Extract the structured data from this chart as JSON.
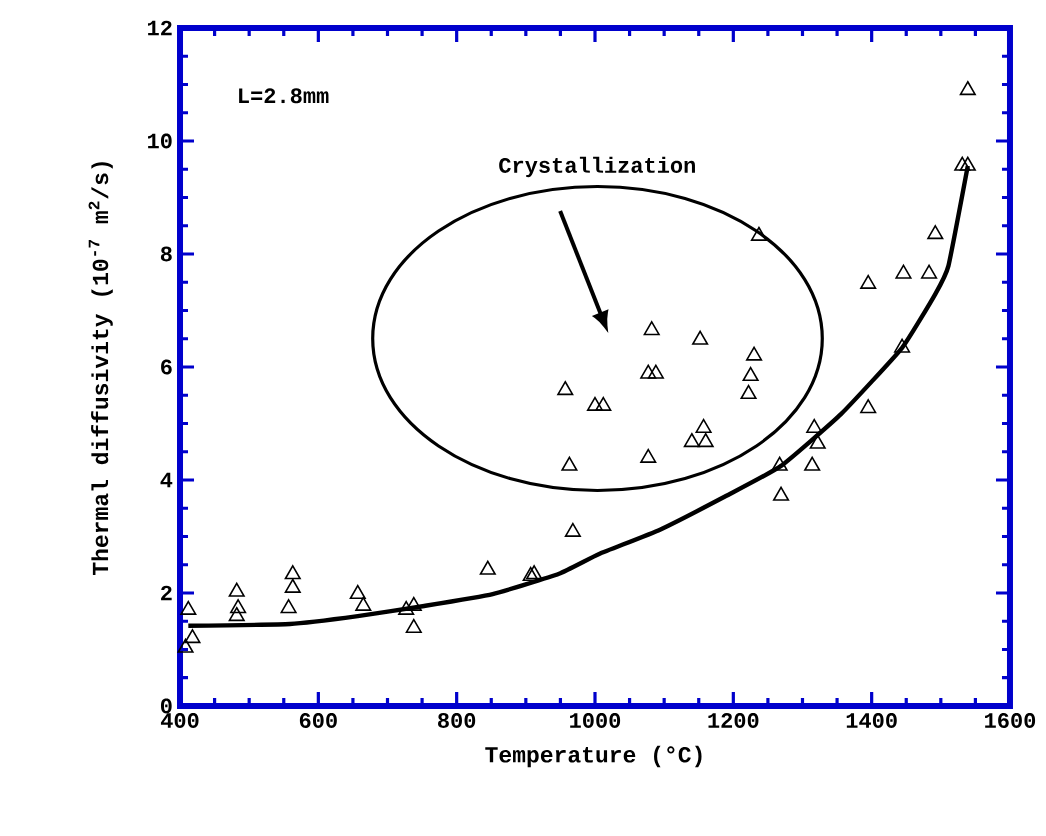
{
  "chart_data": {
    "type": "scatter",
    "xlabel": "Temperature (°C)",
    "ylabel": "Thermal diffusivity (10$^{-7}$ m$^{2}$/s)",
    "annotations": [
      "L=2.8mm",
      "Crystallization"
    ],
    "xlim": [
      400,
      1600
    ],
    "xticks": [
      400,
      600,
      800,
      1000,
      1200,
      1400,
      1600
    ],
    "ylim": [
      0,
      12
    ],
    "yticks": [
      0,
      2,
      4,
      6,
      8,
      10,
      12
    ],
    "grid": false,
    "series": [
      {
        "marker": "triangle",
        "color": "#000000",
        "x": [
          412,
          418,
          408,
          482,
          484,
          482,
          563,
          563,
          557,
          657,
          665,
          727,
          738,
          738,
          845,
          907,
          912,
          957,
          963,
          968,
          1000,
          1012,
          1082,
          1077,
          1088,
          1077,
          1152,
          1140,
          1157,
          1160,
          1230,
          1225,
          1222,
          1237,
          1267,
          1269,
          1317,
          1322,
          1314,
          1395,
          1395,
          1446,
          1444,
          1483,
          1492,
          1531,
          1539,
          1539
        ],
        "values": [
          1.7,
          1.2,
          1.03,
          2.02,
          1.73,
          1.59,
          2.33,
          2.09,
          1.73,
          1.98,
          1.77,
          1.7,
          1.77,
          1.38,
          2.41,
          2.3,
          2.33,
          5.59,
          4.25,
          3.08,
          5.31,
          5.31,
          6.65,
          5.88,
          5.88,
          4.39,
          6.48,
          4.67,
          4.92,
          4.67,
          6.2,
          5.84,
          5.52,
          8.32,
          4.25,
          3.72,
          4.92,
          4.64,
          4.25,
          7.47,
          5.27,
          7.65,
          6.34,
          7.65,
          8.35,
          9.56,
          9.56,
          10.9
        ]
      },
      {
        "type": "line",
        "marker": "none",
        "color": "#000000",
        "x": [
          412,
          559,
          657,
          753,
          852,
          948,
          1006,
          1094,
          1190,
          1269,
          1356,
          1444,
          1492,
          1511,
          1539
        ],
        "values": [
          1.42,
          1.45,
          1.59,
          1.77,
          1.98,
          2.34,
          2.69,
          3.12,
          3.72,
          4.25,
          5.17,
          6.34,
          7.29,
          7.79,
          9.56
        ]
      }
    ]
  }
}
